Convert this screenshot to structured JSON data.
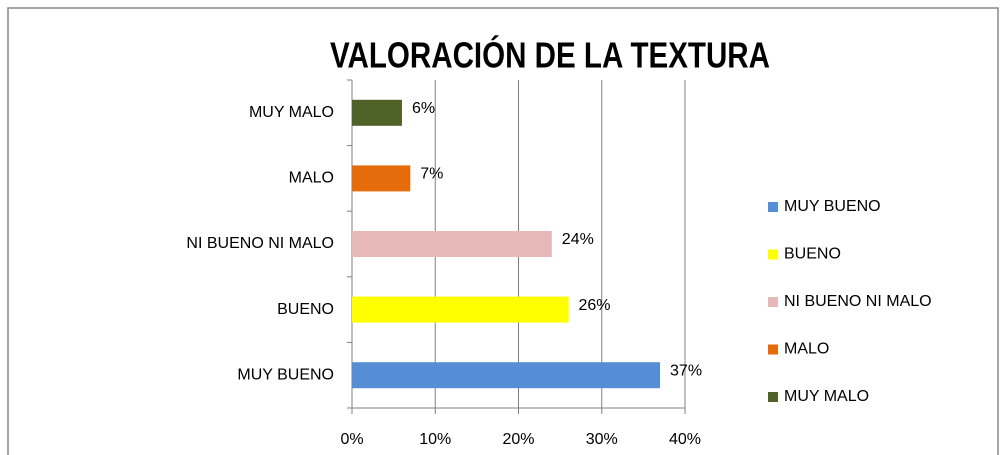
{
  "chart_data": {
    "type": "bar",
    "orientation": "horizontal",
    "title": "VALORACIÓN DE LA TEXTURA",
    "categories": [
      "MUY BUENO",
      "BUENO",
      "NI BUENO NI MALO",
      "MALO",
      "MUY MALO"
    ],
    "values": [
      37,
      26,
      24,
      7,
      6
    ],
    "value_labels": [
      "37%",
      "26%",
      "24%",
      "7%",
      "6%"
    ],
    "colors": [
      "#558ed5",
      "#ffff00",
      "#e6b9b8",
      "#e46c0a",
      "#4f6228"
    ],
    "xlim": [
      0,
      40
    ],
    "xticks": [
      {
        "value": 0,
        "label": "0%"
      },
      {
        "value": 10,
        "label": "10%"
      },
      {
        "value": 20,
        "label": "20%"
      },
      {
        "value": 30,
        "label": "30%"
      },
      {
        "value": 40,
        "label": "40%"
      }
    ],
    "grid": true,
    "legend": "right"
  }
}
